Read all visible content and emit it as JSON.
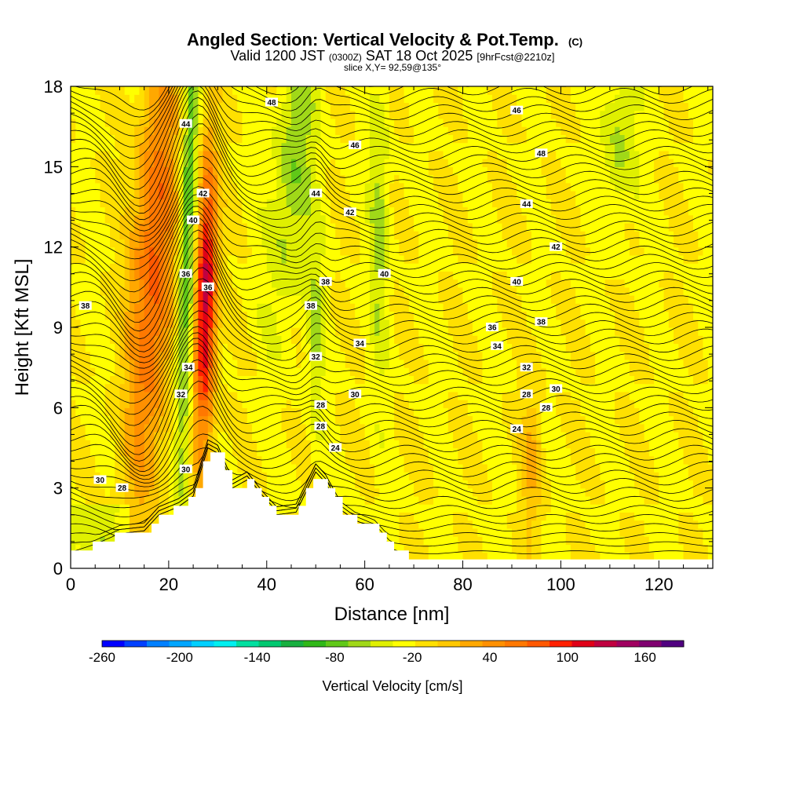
{
  "chart_data": {
    "type": "contour",
    "title": "Angled Section: Vertical Velocity & Pot.Temp.",
    "title_mark": "(C)",
    "subtitle_valid": "Valid 1200 JST",
    "subtitle_utc": "(0300Z)",
    "subtitle_date": "SAT 18 Oct 2025",
    "subtitle_fcst": "[9hrFcst@2210z]",
    "subtitle_slice": "slice X,Y= 92,59@135°",
    "xlabel": "Distance [nm]",
    "ylabel": "Height [Kft MSL]",
    "xlim": [
      0,
      131
    ],
    "ylim": [
      0,
      18
    ],
    "xticks": [
      "0",
      "20",
      "40",
      "60",
      "80",
      "100",
      "120"
    ],
    "yticks": [
      "0",
      "3",
      "6",
      "9",
      "12",
      "15",
      "18"
    ],
    "colorbar": {
      "label": "Vertical Velocity [cm/s]",
      "min": -260,
      "max": 190,
      "step": 20,
      "tick_labels": [
        "-260",
        "-200",
        "-140",
        "-80",
        "-20",
        "40",
        "100",
        "160"
      ],
      "colors": [
        "#0000ff",
        "#0040ff",
        "#0080ff",
        "#00a6ff",
        "#00d0ff",
        "#00f0f0",
        "#00e0a0",
        "#00c870",
        "#18b040",
        "#30b818",
        "#60c818",
        "#a0d818",
        "#e0f000",
        "#ffff00",
        "#ffe000",
        "#ffc800",
        "#ffa800",
        "#ff9000",
        "#ff7800",
        "#ff5800",
        "#ff2000",
        "#e00018",
        "#c00040",
        "#a00060",
        "#800070",
        "#500080"
      ]
    },
    "theta_labels": [
      {
        "v": "48",
        "x": 41,
        "z": 17.4
      },
      {
        "v": "46",
        "x": 91,
        "z": 17.1
      },
      {
        "v": "44",
        "x": 23.5,
        "z": 16.6
      },
      {
        "v": "46",
        "x": 58,
        "z": 15.8
      },
      {
        "v": "48",
        "x": 96,
        "z": 15.5
      },
      {
        "v": "42",
        "x": 27,
        "z": 14.0
      },
      {
        "v": "44",
        "x": 50,
        "z": 14.0
      },
      {
        "v": "44",
        "x": 93,
        "z": 13.6
      },
      {
        "v": "40",
        "x": 25,
        "z": 13.0
      },
      {
        "v": "42",
        "x": 57,
        "z": 13.3
      },
      {
        "v": "42",
        "x": 99,
        "z": 12.0
      },
      {
        "v": "36",
        "x": 23.5,
        "z": 11.0
      },
      {
        "v": "36",
        "x": 28,
        "z": 10.5
      },
      {
        "v": "40",
        "x": 64,
        "z": 11.0
      },
      {
        "v": "40",
        "x": 91,
        "z": 10.7
      },
      {
        "v": "38",
        "x": 52,
        "z": 10.7
      },
      {
        "v": "38",
        "x": 3,
        "z": 9.8
      },
      {
        "v": "38",
        "x": 49,
        "z": 9.8
      },
      {
        "v": "36",
        "x": 86,
        "z": 9.0
      },
      {
        "v": "38",
        "x": 96,
        "z": 9.2
      },
      {
        "v": "34",
        "x": 59,
        "z": 8.4
      },
      {
        "v": "34",
        "x": 87,
        "z": 8.3
      },
      {
        "v": "32",
        "x": 50,
        "z": 7.9
      },
      {
        "v": "32",
        "x": 93,
        "z": 7.5
      },
      {
        "v": "34",
        "x": 24,
        "z": 7.5
      },
      {
        "v": "30",
        "x": 99,
        "z": 6.7
      },
      {
        "v": "32",
        "x": 22.5,
        "z": 6.5
      },
      {
        "v": "30",
        "x": 58,
        "z": 6.5
      },
      {
        "v": "28",
        "x": 93,
        "z": 6.5
      },
      {
        "v": "28",
        "x": 51,
        "z": 6.1
      },
      {
        "v": "28",
        "x": 97,
        "z": 6.0
      },
      {
        "v": "28",
        "x": 51,
        "z": 5.3
      },
      {
        "v": "24",
        "x": 91,
        "z": 5.2
      },
      {
        "v": "24",
        "x": 54,
        "z": 4.5
      },
      {
        "v": "30",
        "x": 23.5,
        "z": 3.7
      },
      {
        "v": "30",
        "x": 6,
        "z": 3.3
      },
      {
        "v": "28",
        "x": 10.5,
        "z": 3.0
      }
    ]
  }
}
